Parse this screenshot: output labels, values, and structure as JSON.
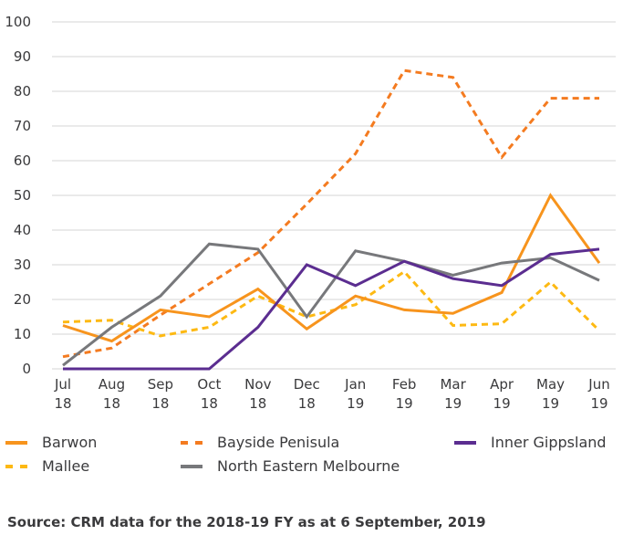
{
  "chart_data": {
    "type": "line",
    "title": "",
    "xlabel": "",
    "ylabel": "",
    "ylim": [
      0,
      100
    ],
    "yticks": [
      "0",
      "10",
      "20",
      "30",
      "40",
      "50",
      "60",
      "70",
      "80",
      "90",
      "100"
    ],
    "grid": true,
    "legend_position": "bottom",
    "categories": [
      [
        "Jul",
        "18"
      ],
      [
        "Aug",
        "18"
      ],
      [
        "Sep",
        "18"
      ],
      [
        "Oct",
        "18"
      ],
      [
        "Nov",
        "18"
      ],
      [
        "Dec",
        "18"
      ],
      [
        "Jan",
        "19"
      ],
      [
        "Feb",
        "19"
      ],
      [
        "Mar",
        "19"
      ],
      [
        "Apr",
        "19"
      ],
      [
        "May",
        "19"
      ],
      [
        "Jun",
        "19"
      ]
    ],
    "series": [
      {
        "name": "Barwon",
        "color": "#F7941D",
        "dash": "solid",
        "values": [
          12.5,
          8,
          17,
          15,
          23,
          11.5,
          21,
          17,
          16,
          22,
          50,
          30.5
        ]
      },
      {
        "name": "Bayside Penisula",
        "color": "#F47B20",
        "dash": "dashed",
        "values": [
          3.5,
          6,
          15.5,
          24.5,
          33.5,
          47.5,
          62,
          86,
          84,
          61,
          78,
          78
        ]
      },
      {
        "name": "Inner Gippsland",
        "color": "#5B2D90",
        "dash": "solid",
        "values": [
          0,
          0,
          0,
          0,
          12,
          30,
          24,
          31,
          26,
          24,
          33,
          34.5
        ]
      },
      {
        "name": "Mallee",
        "color": "#FDB913",
        "dash": "dashed",
        "values": [
          13.5,
          14,
          9.5,
          12,
          21,
          15,
          18.5,
          28,
          12.5,
          13,
          25,
          11
        ]
      },
      {
        "name": "North Eastern Melbourne",
        "color": "#77787B",
        "dash": "solid",
        "values": [
          1,
          12,
          21,
          36,
          34.5,
          15,
          34,
          31,
          27,
          30.5,
          32,
          25.5
        ]
      }
    ]
  },
  "legend": {
    "items": [
      {
        "label": "Barwon",
        "series_index": 0
      },
      {
        "label": "Bayside Penisula",
        "series_index": 1
      },
      {
        "label": "Inner Gippsland",
        "series_index": 2
      },
      {
        "label": "Mallee",
        "series_index": 3
      },
      {
        "label": "North Eastern Melbourne",
        "series_index": 4
      }
    ]
  },
  "source": "Source: CRM data for the 2018-19 FY as at 6 September, 2019"
}
